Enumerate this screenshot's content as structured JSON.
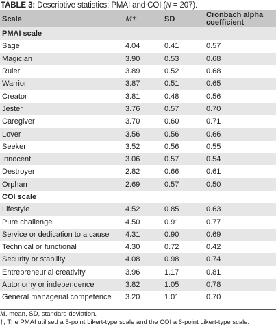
{
  "title": {
    "label": "TABLE 3:",
    "text_before_n": " Descriptive statistics: PMAI and COI (",
    "n_symbol": "N",
    "text_after_n": " = 207)."
  },
  "headers": {
    "scale": "Scale",
    "mean": "M†",
    "sd": "SD",
    "alpha": "Cronbach alpha coefficient"
  },
  "sections": [
    {
      "title": "PMAI scale",
      "rows": [
        {
          "scale": "Sage",
          "mean": "4.04",
          "sd": "0.41",
          "alpha": "0.57"
        },
        {
          "scale": "Magician",
          "mean": "3.90",
          "sd": "0.53",
          "alpha": "0.68"
        },
        {
          "scale": "Ruler",
          "mean": "3.89",
          "sd": "0.52",
          "alpha": "0.68"
        },
        {
          "scale": "Warrior",
          "mean": "3.87",
          "sd": "0.51",
          "alpha": "0.65"
        },
        {
          "scale": "Creator",
          "mean": "3.81",
          "sd": "0.48",
          "alpha": "0.56"
        },
        {
          "scale": "Jester",
          "mean": "3.76",
          "sd": "0.57",
          "alpha": "0.70"
        },
        {
          "scale": "Caregiver",
          "mean": "3.70",
          "sd": "0.60",
          "alpha": "0.71"
        },
        {
          "scale": "Lover",
          "mean": "3.56",
          "sd": "0.56",
          "alpha": "0.66"
        },
        {
          "scale": "Seeker",
          "mean": "3.52",
          "sd": "0.56",
          "alpha": "0.55"
        },
        {
          "scale": "Innocent",
          "mean": "3.06",
          "sd": "0.57",
          "alpha": "0.54"
        },
        {
          "scale": "Destroyer",
          "mean": "2.82",
          "sd": "0.66",
          "alpha": "0.61"
        },
        {
          "scale": "Orphan",
          "mean": "2.69",
          "sd": "0.57",
          "alpha": "0.50"
        }
      ]
    },
    {
      "title": "COI scale",
      "rows": [
        {
          "scale": "Lifestyle",
          "mean": "4.52",
          "sd": "0.85",
          "alpha": "0.63"
        },
        {
          "scale": "Pure challenge",
          "mean": "4.50",
          "sd": "0.91",
          "alpha": "0.77"
        },
        {
          "scale": "Service or dedication to a cause",
          "mean": "4.31",
          "sd": "0.90",
          "alpha": "0.69"
        },
        {
          "scale": "Technical or functional",
          "mean": "4.30",
          "sd": "0.72",
          "alpha": "0.42"
        },
        {
          "scale": "Security or stability",
          "mean": "4.08",
          "sd": "0.98",
          "alpha": "0.74"
        },
        {
          "scale": "Entrepreneurial creativity",
          "mean": "3.96",
          "sd": "1.17",
          "alpha": "0.81"
        },
        {
          "scale": "Autonomy or independence",
          "mean": "3.82",
          "sd": "1.05",
          "alpha": "0.78"
        },
        {
          "scale": "General managerial competence",
          "mean": "3.20",
          "sd": "1.01",
          "alpha": "0.70"
        }
      ]
    }
  ],
  "footnotes": {
    "m_symbol": "M",
    "abbrev": ", mean, SD, standard deviation.",
    "dagger": "†, The PMAI utilised a 5-point Likert-type scale and the COI a 6-point Likert-type scale."
  }
}
